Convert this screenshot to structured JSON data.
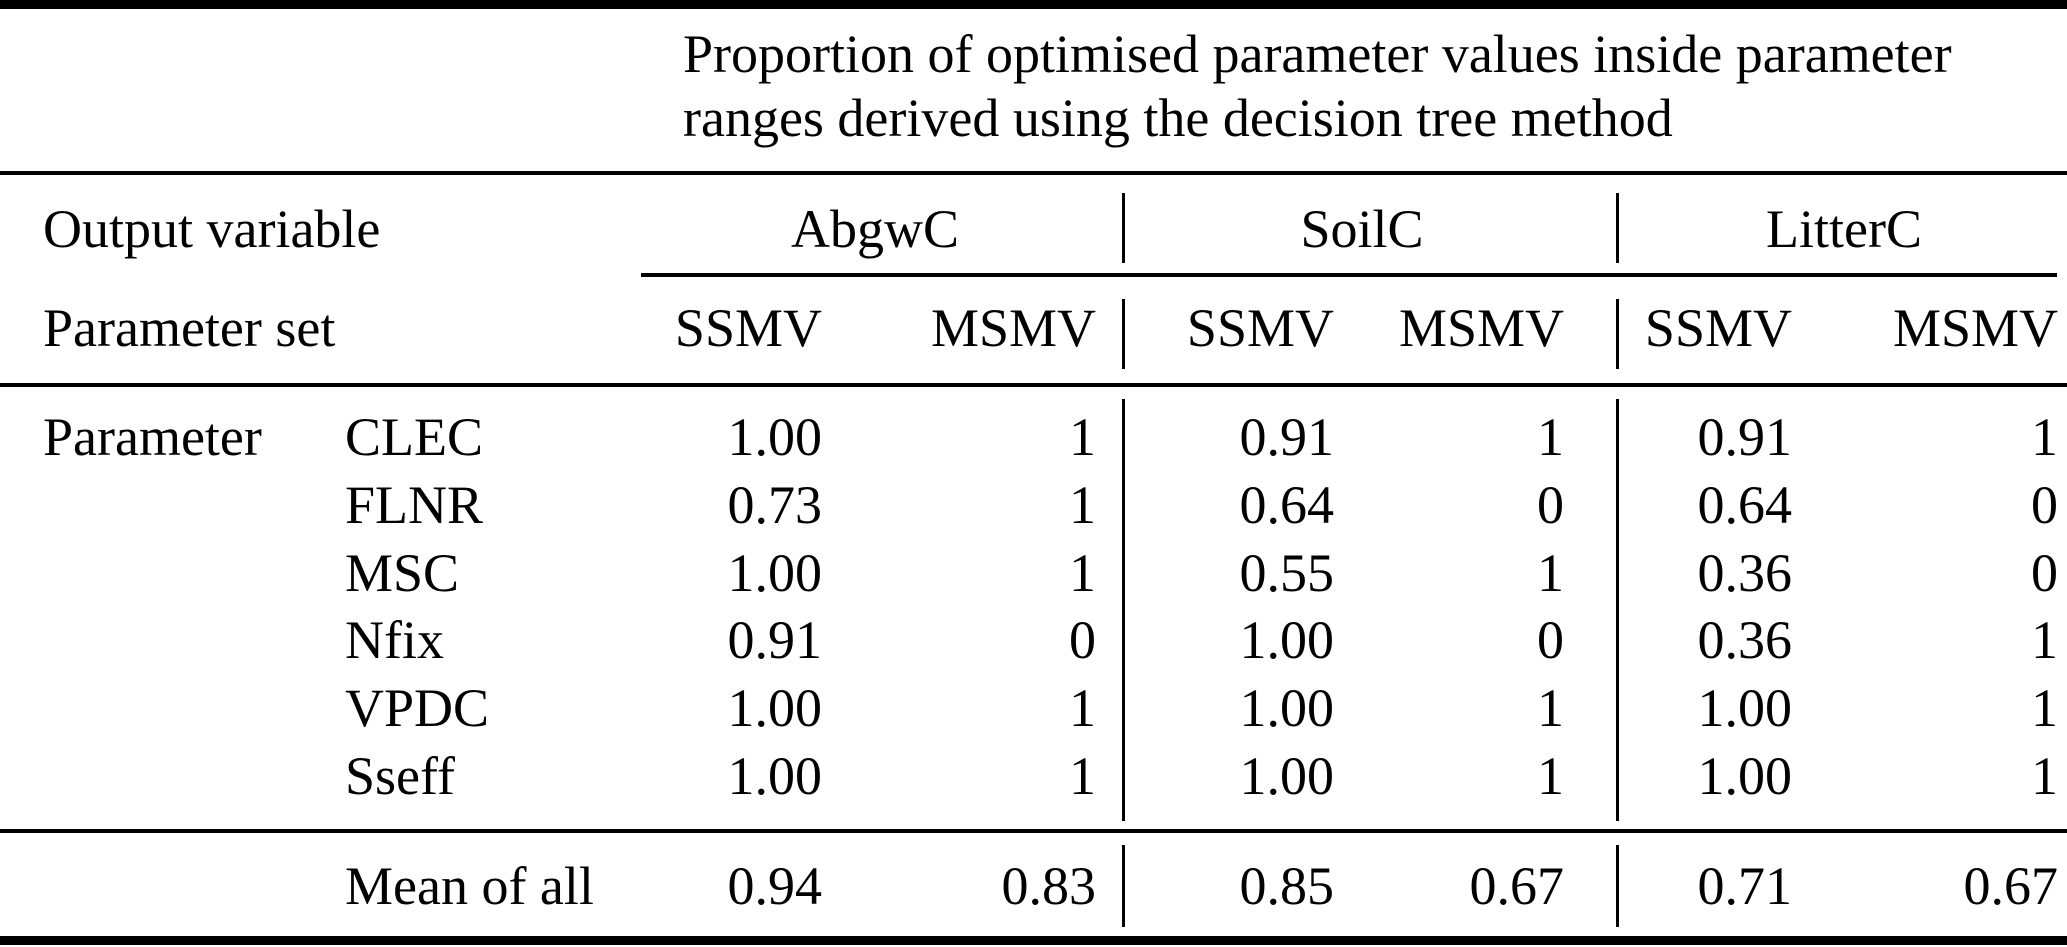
{
  "table": {
    "title": "Proportion of optimised parameter values inside parameter ranges derived using the decision tree method",
    "title_lines": [
      "Proportion of optimised parameter values inside parameter",
      "ranges derived using the decision tree method"
    ],
    "header": {
      "output_variable_label": "Output variable",
      "parameter_set_label": "Parameter set",
      "groups": [
        {
          "label": "AbgwC"
        },
        {
          "label": "SoilC"
        },
        {
          "label": "LitterC"
        }
      ],
      "subcolumns": [
        "SSMV",
        "MSMV",
        "SSMV",
        "MSMV",
        "SSMV",
        "MSMV"
      ]
    },
    "body": {
      "row_label": "Parameter",
      "rows": [
        {
          "parameter": "CLEC",
          "values": [
            "1.00",
            "1",
            "0.91",
            "1",
            "0.91",
            "1"
          ]
        },
        {
          "parameter": "FLNR",
          "values": [
            "0.73",
            "1",
            "0.64",
            "0",
            "0.64",
            "0"
          ]
        },
        {
          "parameter": "MSC",
          "values": [
            "1.00",
            "1",
            "0.55",
            "1",
            "0.36",
            "0"
          ]
        },
        {
          "parameter": "Nfix",
          "values": [
            "0.91",
            "0",
            "1.00",
            "0",
            "0.36",
            "1"
          ]
        },
        {
          "parameter": "VPDC",
          "values": [
            "1.00",
            "1",
            "1.00",
            "1",
            "1.00",
            "1"
          ]
        },
        {
          "parameter": "Sseff",
          "values": [
            "1.00",
            "1",
            "1.00",
            "1",
            "1.00",
            "1"
          ]
        }
      ],
      "summary": {
        "label": "Mean of all",
        "values": [
          "0.94",
          "0.83",
          "0.85",
          "0.67",
          "0.71",
          "0.67"
        ]
      }
    },
    "colors": {
      "text": "#000000",
      "background": "#ffffff",
      "rule": "#000000"
    }
  },
  "chart_data": {
    "type": "table",
    "title": "Proportion of optimised parameter values inside parameter ranges derived using the decision tree method",
    "column_groups": [
      "AbgwC",
      "SoilC",
      "LitterC"
    ],
    "columns": [
      "AbgwC SSMV",
      "AbgwC MSMV",
      "SoilC SSMV",
      "SoilC MSMV",
      "LitterC SSMV",
      "LitterC MSMV"
    ],
    "row_categories": [
      "CLEC",
      "FLNR",
      "MSC",
      "Nfix",
      "VPDC",
      "Sseff",
      "Mean of all"
    ],
    "rows": [
      [
        1.0,
        1,
        0.91,
        1,
        0.91,
        1
      ],
      [
        0.73,
        1,
        0.64,
        0,
        0.64,
        0
      ],
      [
        1.0,
        1,
        0.55,
        1,
        0.36,
        0
      ],
      [
        0.91,
        0,
        1.0,
        0,
        0.36,
        1
      ],
      [
        1.0,
        1,
        1.0,
        1,
        1.0,
        1
      ],
      [
        1.0,
        1,
        1.0,
        1,
        1.0,
        1
      ],
      [
        0.94,
        0.83,
        0.85,
        0.67,
        0.71,
        0.67
      ]
    ]
  }
}
